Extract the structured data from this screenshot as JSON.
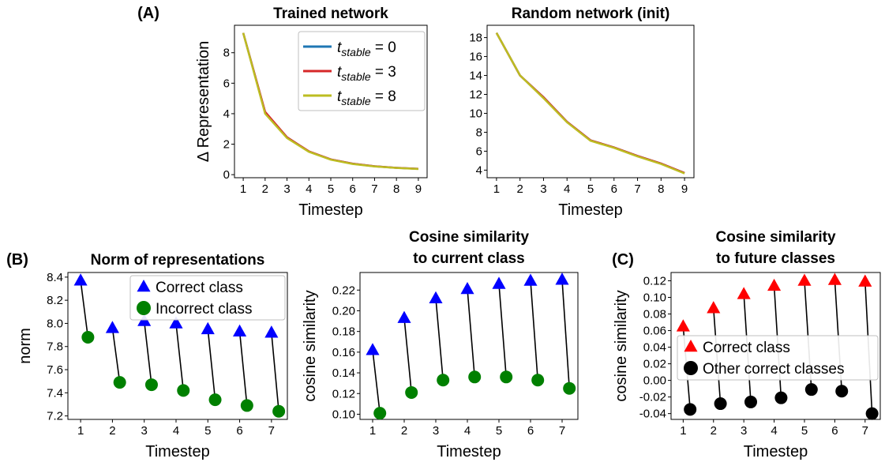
{
  "figure": {
    "panel_labels": [
      "(A)",
      "(B)",
      "(C)"
    ]
  },
  "chart_data": [
    {
      "id": "A1",
      "type": "line",
      "title": "Trained network",
      "xlabel": "Timestep",
      "ylabel": "Δ Representation",
      "x": [
        1,
        2,
        3,
        4,
        5,
        6,
        7,
        8,
        9
      ],
      "xticks": [
        1,
        2,
        3,
        4,
        5,
        6,
        7,
        8,
        9
      ],
      "yticks": [
        0,
        2,
        4,
        6,
        8
      ],
      "xlim": [
        0.6,
        9.4
      ],
      "ylim": [
        -0.2,
        9.8
      ],
      "legend": "top-right",
      "series": [
        {
          "name_main": "t",
          "name_sub": "stable",
          "name_rest": " = 0",
          "color": "#1f77b4",
          "values": [
            9.3,
            4.1,
            2.45,
            1.52,
            1.0,
            0.72,
            0.55,
            0.45,
            0.38
          ]
        },
        {
          "name_main": "t",
          "name_sub": "stable",
          "name_rest": " = 3",
          "color": "#d62728",
          "values": [
            9.3,
            4.12,
            2.45,
            1.53,
            1.0,
            0.72,
            0.55,
            0.45,
            0.38
          ]
        },
        {
          "name_main": "t",
          "name_sub": "stable",
          "name_rest": " = 8",
          "color": "#bcbd22",
          "values": [
            9.3,
            4.0,
            2.4,
            1.5,
            0.98,
            0.7,
            0.54,
            0.44,
            0.37
          ]
        }
      ]
    },
    {
      "id": "A2",
      "type": "line",
      "title": "Random network (init)",
      "xlabel": "Timestep",
      "ylabel": "",
      "x": [
        1,
        2,
        3,
        4,
        5,
        6,
        7,
        8,
        9
      ],
      "xticks": [
        1,
        2,
        3,
        4,
        5,
        6,
        7,
        8,
        9
      ],
      "yticks": [
        4,
        6,
        8,
        10,
        12,
        14,
        16,
        18
      ],
      "xlim": [
        0.6,
        9.4
      ],
      "ylim": [
        3.2,
        19.3
      ],
      "series": [
        {
          "color": "#1f77b4",
          "values": [
            18.5,
            14.0,
            11.7,
            9.1,
            7.15,
            6.4,
            5.5,
            4.7,
            3.7
          ]
        },
        {
          "color": "#d62728",
          "values": [
            18.5,
            14.0,
            11.7,
            9.1,
            7.15,
            6.4,
            5.5,
            4.7,
            3.7
          ]
        },
        {
          "color": "#bcbd22",
          "values": [
            18.5,
            14.0,
            11.6,
            9.05,
            7.1,
            6.35,
            5.45,
            4.65,
            3.65
          ]
        }
      ]
    },
    {
      "id": "B1",
      "type": "scatter",
      "title_lines": [
        "Norm of representations"
      ],
      "xlabel": "Timestep",
      "ylabel": "norm",
      "x": [
        1,
        2,
        3,
        4,
        5,
        6,
        7
      ],
      "xticks": [
        1,
        2,
        3,
        4,
        5,
        6,
        7
      ],
      "yticks": [
        7.2,
        7.4,
        7.6,
        7.8,
        8.0,
        8.2,
        8.4
      ],
      "ytick_decimals": 1,
      "xlim": [
        0.6,
        7.5
      ],
      "ylim": [
        7.17,
        8.44
      ],
      "x_offset": 0.23,
      "legend": "top-right",
      "correct": {
        "name": "Correct class",
        "color": "#0000ff",
        "marker": "triangle",
        "values": [
          8.37,
          7.96,
          8.02,
          8.0,
          7.95,
          7.93,
          7.92
        ]
      },
      "other": {
        "name": "Incorrect class",
        "color": "#008000",
        "marker": "circle",
        "values": [
          7.88,
          7.49,
          7.47,
          7.42,
          7.34,
          7.29,
          7.24
        ]
      }
    },
    {
      "id": "B2",
      "type": "scatter",
      "title_lines": [
        "Cosine similarity",
        "to current class"
      ],
      "xlabel": "Timestep",
      "ylabel": "cosine similarity",
      "x": [
        1,
        2,
        3,
        4,
        5,
        6,
        7
      ],
      "xticks": [
        1,
        2,
        3,
        4,
        5,
        6,
        7
      ],
      "yticks": [
        0.1,
        0.12,
        0.14,
        0.16,
        0.18,
        0.2,
        0.22
      ],
      "ytick_decimals": 2,
      "xlim": [
        0.6,
        7.5
      ],
      "ylim": [
        0.095,
        0.237
      ],
      "x_offset": 0.23,
      "correct": {
        "color": "#0000ff",
        "marker": "triangle",
        "values": [
          0.162,
          0.193,
          0.212,
          0.221,
          0.226,
          0.229,
          0.23
        ]
      },
      "other": {
        "color": "#008000",
        "marker": "circle",
        "values": [
          0.101,
          0.121,
          0.133,
          0.136,
          0.136,
          0.133,
          0.125
        ]
      }
    },
    {
      "id": "C1",
      "type": "scatter",
      "title_lines": [
        "Cosine similarity",
        "to future classes"
      ],
      "xlabel": "Timestep",
      "ylabel": "cosine similarity",
      "x": [
        1,
        2,
        3,
        4,
        5,
        6,
        7
      ],
      "xticks": [
        1,
        2,
        3,
        4,
        5,
        6,
        7
      ],
      "yticks": [
        -0.04,
        -0.02,
        0.0,
        0.02,
        0.04,
        0.06,
        0.08,
        0.1,
        0.12
      ],
      "ytick_decimals": 2,
      "xlim": [
        0.6,
        7.5
      ],
      "ylim": [
        -0.047,
        0.13
      ],
      "x_offset": 0.23,
      "legend": "center-right",
      "correct": {
        "name": "Correct class",
        "color": "#ff0000",
        "marker": "triangle",
        "values": [
          0.065,
          0.087,
          0.104,
          0.114,
          0.12,
          0.121,
          0.119
        ]
      },
      "other": {
        "name": "Other correct classes",
        "color": "#000000",
        "marker": "circle",
        "values": [
          -0.035,
          -0.028,
          -0.026,
          -0.021,
          -0.011,
          -0.013,
          -0.04
        ]
      }
    }
  ]
}
